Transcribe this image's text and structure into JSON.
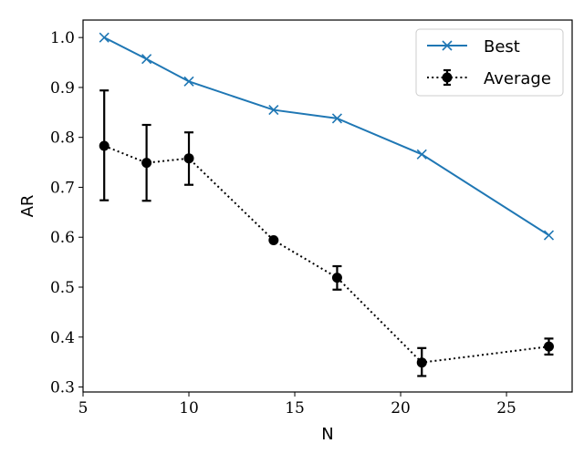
{
  "chart_data": {
    "type": "line",
    "title": "",
    "xlabel": "N",
    "ylabel": "AR",
    "xlim": [
      5,
      28.1
    ],
    "ylim": [
      0.29,
      1.035
    ],
    "xticks": [
      5,
      10,
      15,
      20,
      25
    ],
    "yticks": [
      0.3,
      0.4,
      0.5,
      0.6,
      0.7,
      0.8,
      0.9,
      1.0
    ],
    "ytick_labels": [
      "0.3",
      "0.4",
      "0.5",
      "0.6",
      "0.7",
      "0.8",
      "0.9",
      "1.0"
    ],
    "legend_position": "top-right",
    "series": [
      {
        "name": "Best",
        "color": "#1f77b4",
        "line_style": "solid",
        "marker": "x",
        "x": [
          6,
          8,
          10,
          14,
          17,
          21,
          27
        ],
        "values": [
          1.0,
          0.957,
          0.912,
          0.855,
          0.838,
          0.766,
          0.604
        ]
      },
      {
        "name": "Average",
        "color": "#000000",
        "line_style": "dotted",
        "marker": "circle",
        "x": [
          6,
          8,
          10,
          14,
          17,
          21,
          27
        ],
        "values": [
          0.783,
          0.749,
          0.758,
          0.594,
          0.519,
          0.349,
          0.381
        ],
        "err_low": [
          0.674,
          0.673,
          0.705,
          0.594,
          0.495,
          0.322,
          0.365
        ],
        "err_high": [
          0.894,
          0.825,
          0.81,
          0.594,
          0.542,
          0.378,
          0.397
        ]
      }
    ]
  }
}
